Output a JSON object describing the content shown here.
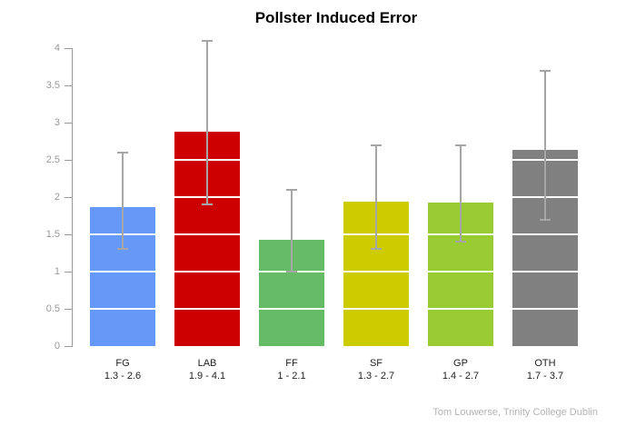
{
  "chart_data": {
    "type": "bar",
    "title": "Pollster Induced Error",
    "xlabel": "",
    "ylabel": "",
    "categories": [
      "FG",
      "LAB",
      "FF",
      "SF",
      "GP",
      "OTH"
    ],
    "values": [
      1.87,
      2.88,
      1.43,
      1.94,
      1.93,
      2.63
    ],
    "error_low": [
      1.3,
      1.9,
      1.0,
      1.3,
      1.4,
      1.7
    ],
    "error_high": [
      2.6,
      4.1,
      2.1,
      2.7,
      2.7,
      3.7
    ],
    "range_labels": [
      "1.3 - 2.6",
      "1.9 - 4.1",
      "1 - 2.1",
      "1.3 - 2.7",
      "1.4 - 2.7",
      "1.7 - 3.7"
    ],
    "colors": [
      "#6699f7",
      "#cc0000",
      "#66bb66",
      "#cccc00",
      "#99cc33",
      "#808080"
    ],
    "ylim": [
      0,
      4
    ],
    "y_ticks": [
      "0",
      "0.5",
      "1",
      "1.5",
      "2",
      "2.5",
      "3",
      "3.5",
      "4"
    ],
    "grid": "white overlay lines on bars",
    "legend": "none",
    "error_bar_color": "#a6a6a6",
    "axis_color": "#9a9a9a"
  },
  "credit": "Tom Louwerse, Trinity College Dublin"
}
